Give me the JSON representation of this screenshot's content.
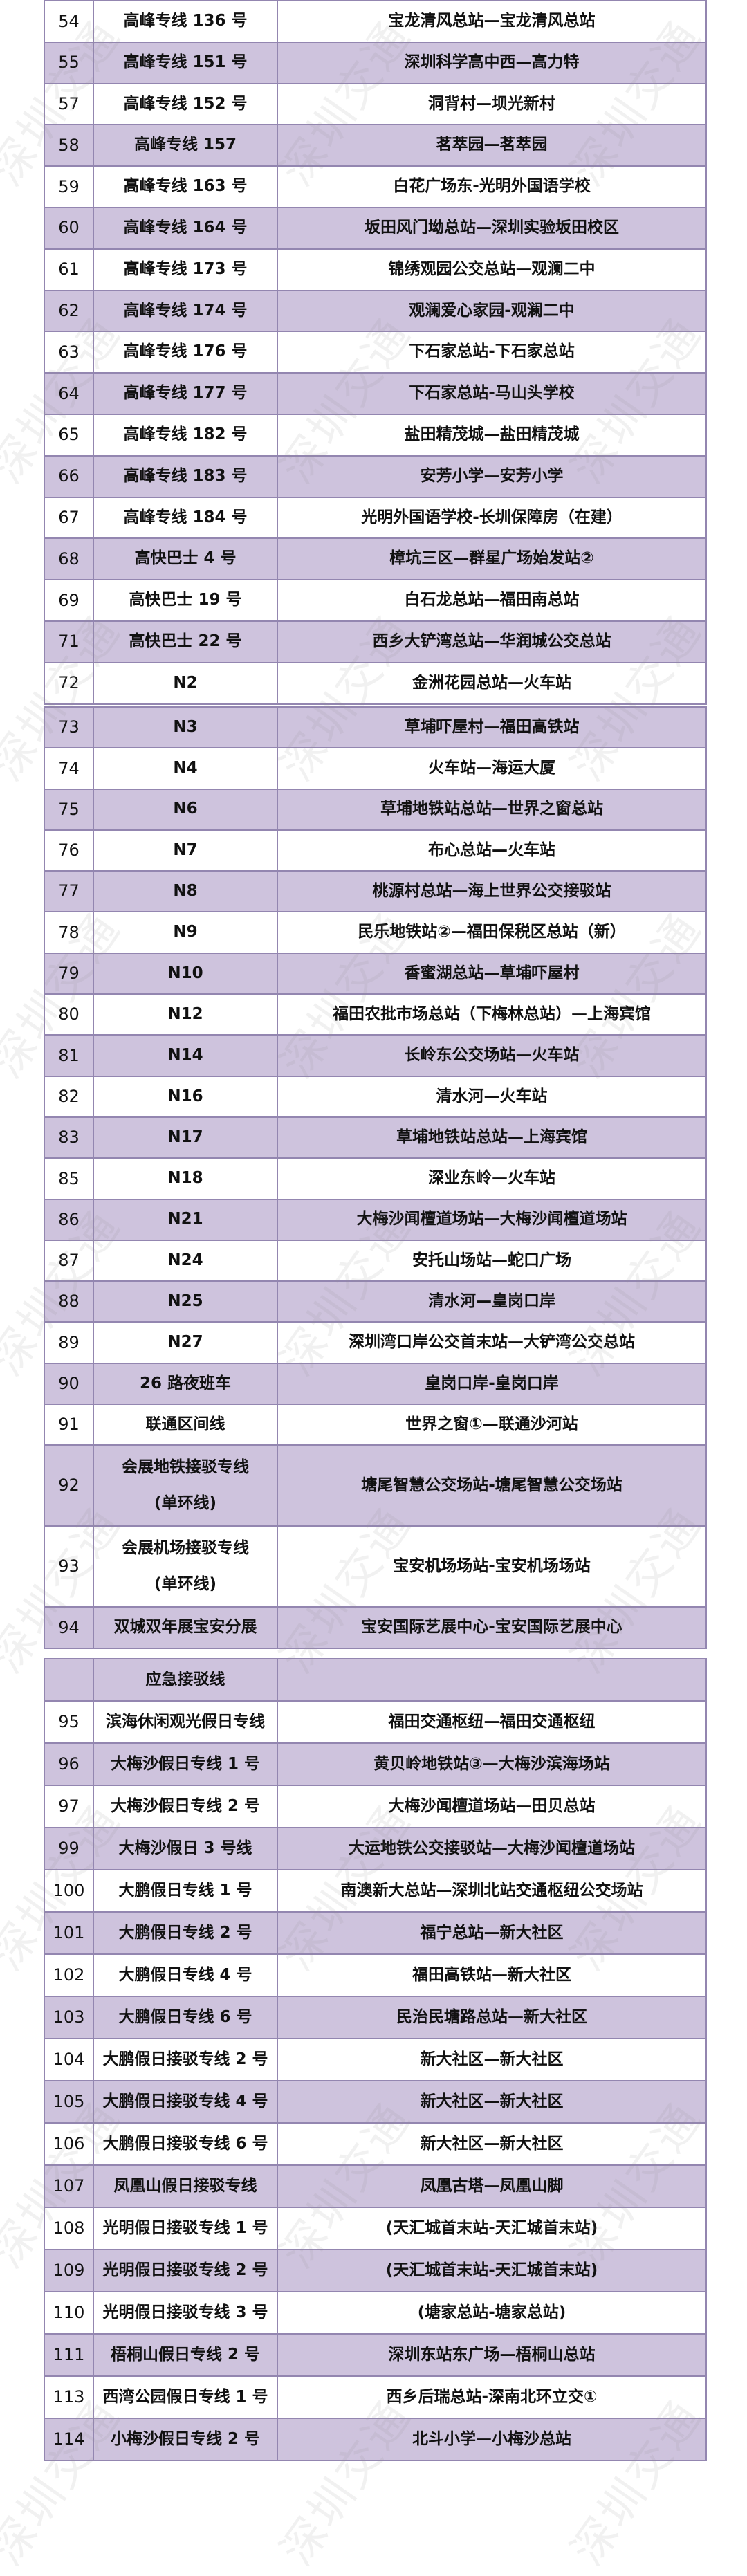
{
  "watermark": "深圳交通",
  "colors": {
    "row_alt": "#cec3dd",
    "border": "#9386b0",
    "row_plain": "#ffffff"
  },
  "tables": [
    {
      "rows": [
        {
          "no": "54",
          "name": "高峰专线 136 号",
          "route": "宝龙清风总站—宝龙清风总站"
        },
        {
          "no": "55",
          "name": "高峰专线 151 号",
          "route": "深圳科学高中西—高力特"
        },
        {
          "no": "57",
          "name": "高峰专线 152 号",
          "route": "洞背村—坝光新村"
        },
        {
          "no": "58",
          "name": "高峰专线 157",
          "route": "茗萃园—茗萃园"
        },
        {
          "no": "59",
          "name": "高峰专线 163 号",
          "route": "白花广场东-光明外国语学校"
        },
        {
          "no": "60",
          "name": "高峰专线 164 号",
          "route": "坂田风门坳总站—深圳实验坂田校区"
        },
        {
          "no": "61",
          "name": "高峰专线 173 号",
          "route": "锦绣观园公交总站—观澜二中"
        },
        {
          "no": "62",
          "name": "高峰专线 174 号",
          "route": "观澜爱心家园-观澜二中"
        },
        {
          "no": "63",
          "name": "高峰专线 176 号",
          "route": "下石家总站-下石家总站"
        },
        {
          "no": "64",
          "name": "高峰专线 177 号",
          "route": "下石家总站-马山头学校"
        },
        {
          "no": "65",
          "name": "高峰专线 182 号",
          "route": "盐田精茂城—盐田精茂城"
        },
        {
          "no": "66",
          "name": "高峰专线 183 号",
          "route": "安芳小学—安芳小学"
        },
        {
          "no": "67",
          "name": "高峰专线 184 号",
          "route": "光明外国语学校-长圳保障房（在建）"
        },
        {
          "no": "68",
          "name": "高快巴士 4 号",
          "route": "樟坑三区—群星广场始发站②"
        },
        {
          "no": "69",
          "name": "高快巴士 19 号",
          "route": "白石龙总站—福田南总站"
        },
        {
          "no": "71",
          "name": "高快巴士 22 号",
          "route": "西乡大铲湾总站—华润城公交总站"
        },
        {
          "no": "72",
          "name": "N2",
          "route": "金洲花园总站—火车站"
        }
      ]
    },
    {
      "rows": [
        {
          "no": "73",
          "name": "N3",
          "route": "草埔吓屋村—福田高铁站"
        },
        {
          "no": "74",
          "name": "N4",
          "route": "火车站—海运大厦"
        },
        {
          "no": "75",
          "name": "N6",
          "route": "草埔地铁站总站—世界之窗总站"
        },
        {
          "no": "76",
          "name": "N7",
          "route": "布心总站—火车站"
        },
        {
          "no": "77",
          "name": "N8",
          "route": "桃源村总站—海上世界公交接驳站"
        },
        {
          "no": "78",
          "name": "N9",
          "route": "民乐地铁站②—福田保税区总站（新）"
        },
        {
          "no": "79",
          "name": "N10",
          "route": "香蜜湖总站—草埔吓屋村"
        },
        {
          "no": "80",
          "name": "N12",
          "route": "福田农批市场总站（下梅林总站）—上海宾馆"
        },
        {
          "no": "81",
          "name": "N14",
          "route": "长岭东公交场站—火车站"
        },
        {
          "no": "82",
          "name": "N16",
          "route": "清水河—火车站"
        },
        {
          "no": "83",
          "name": "N17",
          "route": "草埔地铁站总站—上海宾馆"
        },
        {
          "no": "85",
          "name": "N18",
          "route": "深业东岭—火车站"
        },
        {
          "no": "86",
          "name": "N21",
          "route": "大梅沙闻檀道场站—大梅沙闻檀道场站"
        },
        {
          "no": "87",
          "name": "N24",
          "route": "安托山场站—蛇口广场"
        },
        {
          "no": "88",
          "name": "N25",
          "route": "清水河—皇岗口岸"
        },
        {
          "no": "89",
          "name": "N27",
          "route": "深圳湾口岸公交首末站—大铲湾公交总站"
        },
        {
          "no": "90",
          "name": "26 路夜班车",
          "route": "皇岗口岸-皇岗口岸"
        },
        {
          "no": "91",
          "name": "联通区间线",
          "route": "世界之窗①—联通沙河站"
        },
        {
          "no": "92",
          "name": "会展地铁接驳专线",
          "name2": "(单环线)",
          "route": "塘尾智慧公交场站-塘尾智慧公交场站"
        },
        {
          "no": "93",
          "name": "会展机场接驳专线",
          "name2": "(单环线)",
          "route": "宝安机场场站-宝安机场场站"
        },
        {
          "no": "94",
          "name": "双城双年展宝安分展",
          "route": "宝安国际艺展中心-宝安国际艺展中心"
        }
      ]
    },
    {
      "rows": [
        {
          "no": "",
          "name": "应急接驳线",
          "route": ""
        },
        {
          "no": "95",
          "name": "滨海休闲观光假日专线",
          "route": "福田交通枢纽—福田交通枢纽"
        },
        {
          "no": "96",
          "name": "大梅沙假日专线 1 号",
          "route": "黄贝岭地铁站③—大梅沙滨海场站"
        },
        {
          "no": "97",
          "name": "大梅沙假日专线 2 号",
          "route": "大梅沙闻檀道场站—田贝总站"
        },
        {
          "no": "99",
          "name": "大梅沙假日 3 号线",
          "route": "大运地铁公交接驳站—大梅沙闻檀道场站"
        },
        {
          "no": "100",
          "name": "大鹏假日专线 1 号",
          "route": "南澳新大总站—深圳北站交通枢纽公交场站"
        },
        {
          "no": "101",
          "name": "大鹏假日专线 2 号",
          "route": "福宁总站—新大社区"
        },
        {
          "no": "102",
          "name": "大鹏假日专线 4 号",
          "route": "福田高铁站—新大社区"
        },
        {
          "no": "103",
          "name": "大鹏假日专线 6 号",
          "route": "民治民塘路总站—新大社区"
        },
        {
          "no": "104",
          "name": "大鹏假日接驳专线 2 号",
          "route": "新大社区—新大社区"
        },
        {
          "no": "105",
          "name": "大鹏假日接驳专线 4 号",
          "route": "新大社区—新大社区"
        },
        {
          "no": "106",
          "name": "大鹏假日接驳专线 6 号",
          "route": "新大社区—新大社区"
        },
        {
          "no": "107",
          "name": "凤凰山假日接驳专线",
          "route": "凤凰古塔—凤凰山脚"
        },
        {
          "no": "108",
          "name": "光明假日接驳专线 1 号",
          "route": "(天汇城首末站-天汇城首末站)"
        },
        {
          "no": "109",
          "name": "光明假日接驳专线 2 号",
          "route": "(天汇城首末站-天汇城首末站)"
        },
        {
          "no": "110",
          "name": "光明假日接驳专线 3 号",
          "route": "(塘家总站-塘家总站)"
        },
        {
          "no": "111",
          "name": "梧桐山假日专线 2 号",
          "route": "深圳东站东广场—梧桐山总站"
        },
        {
          "no": "113",
          "name": "西湾公园假日专线 1 号",
          "route": "西乡后瑞总站-深南北环立交①"
        },
        {
          "no": "114",
          "name": "小梅沙假日专线 2 号",
          "route": "北斗小学—小梅沙总站"
        }
      ]
    }
  ]
}
